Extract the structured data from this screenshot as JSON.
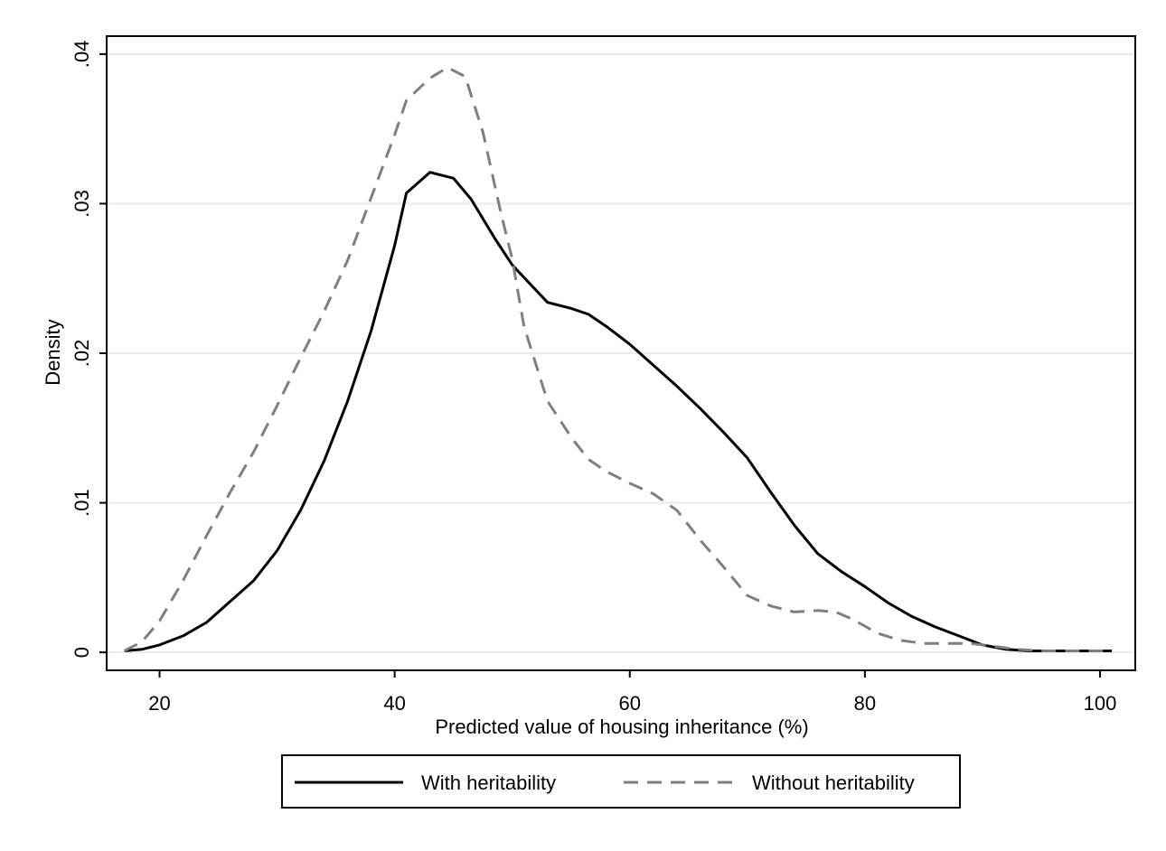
{
  "chart_data": {
    "type": "line",
    "xlabel": "Predicted value of housing inheritance (%)",
    "ylabel": "Density",
    "xlim": [
      15.5,
      103
    ],
    "ylim": [
      -0.0012,
      0.0412
    ],
    "xticks": [
      20,
      40,
      60,
      80,
      100
    ],
    "xtick_labels": [
      "20",
      "40",
      "60",
      "80",
      "100"
    ],
    "yticks": [
      0,
      0.01,
      0.02,
      0.03,
      0.04
    ],
    "ytick_labels": [
      "0",
      ".01",
      ".02",
      ".03",
      ".04"
    ],
    "grid": "horizontal",
    "legend_position": "bottom",
    "series": [
      {
        "name": "With heritability",
        "style": "solid",
        "color": "#000000",
        "x": [
          17,
          18.5,
          20,
          22,
          24,
          26,
          28,
          30,
          32,
          34,
          36,
          38,
          40,
          41,
          43,
          45,
          46.5,
          48.5,
          50,
          53,
          55,
          56.5,
          58,
          60,
          62,
          64,
          66,
          68,
          70,
          72,
          74,
          76,
          78,
          80,
          82,
          84,
          86,
          88,
          90,
          92,
          94,
          96,
          98,
          100,
          101
        ],
        "y": [
          0.0001,
          0.0002,
          0.0005,
          0.0011,
          0.002,
          0.0034,
          0.0048,
          0.0068,
          0.0095,
          0.0128,
          0.0168,
          0.0215,
          0.0272,
          0.0307,
          0.0321,
          0.0317,
          0.0303,
          0.0277,
          0.0259,
          0.0234,
          0.023,
          0.0226,
          0.0218,
          0.0206,
          0.0192,
          0.0178,
          0.0163,
          0.0147,
          0.013,
          0.0107,
          0.0085,
          0.0066,
          0.0054,
          0.0044,
          0.0033,
          0.0024,
          0.0017,
          0.0011,
          0.0005,
          0.0002,
          0.0001,
          0.0001,
          0.0001,
          0.0001,
          0.0001
        ]
      },
      {
        "name": "Without heritability",
        "style": "dashed",
        "color": "#7f7f7f",
        "x": [
          17,
          18.5,
          20,
          22,
          24,
          26,
          28,
          30,
          32,
          34,
          36,
          38,
          40,
          41,
          43,
          44.5,
          46,
          47.5,
          49,
          50,
          51,
          53,
          55,
          56.5,
          58,
          60,
          62,
          64,
          66,
          68,
          70,
          72,
          74,
          76,
          77.5,
          79,
          81,
          83,
          85,
          87,
          89,
          91,
          93,
          95,
          97,
          99,
          101
        ],
        "y": [
          0.0001,
          0.0007,
          0.0021,
          0.0048,
          0.0078,
          0.0107,
          0.0134,
          0.0165,
          0.0197,
          0.0228,
          0.0262,
          0.0304,
          0.0346,
          0.0369,
          0.0384,
          0.0391,
          0.0385,
          0.0348,
          0.0295,
          0.0263,
          0.0218,
          0.0168,
          0.0144,
          0.0129,
          0.0121,
          0.0113,
          0.0106,
          0.0095,
          0.0075,
          0.0057,
          0.0038,
          0.0031,
          0.0027,
          0.0028,
          0.0027,
          0.0022,
          0.0013,
          0.0008,
          0.0006,
          0.0006,
          0.0006,
          0.0004,
          0.0002,
          0.0001,
          0.0001,
          0.0001,
          0.0001
        ]
      }
    ]
  }
}
